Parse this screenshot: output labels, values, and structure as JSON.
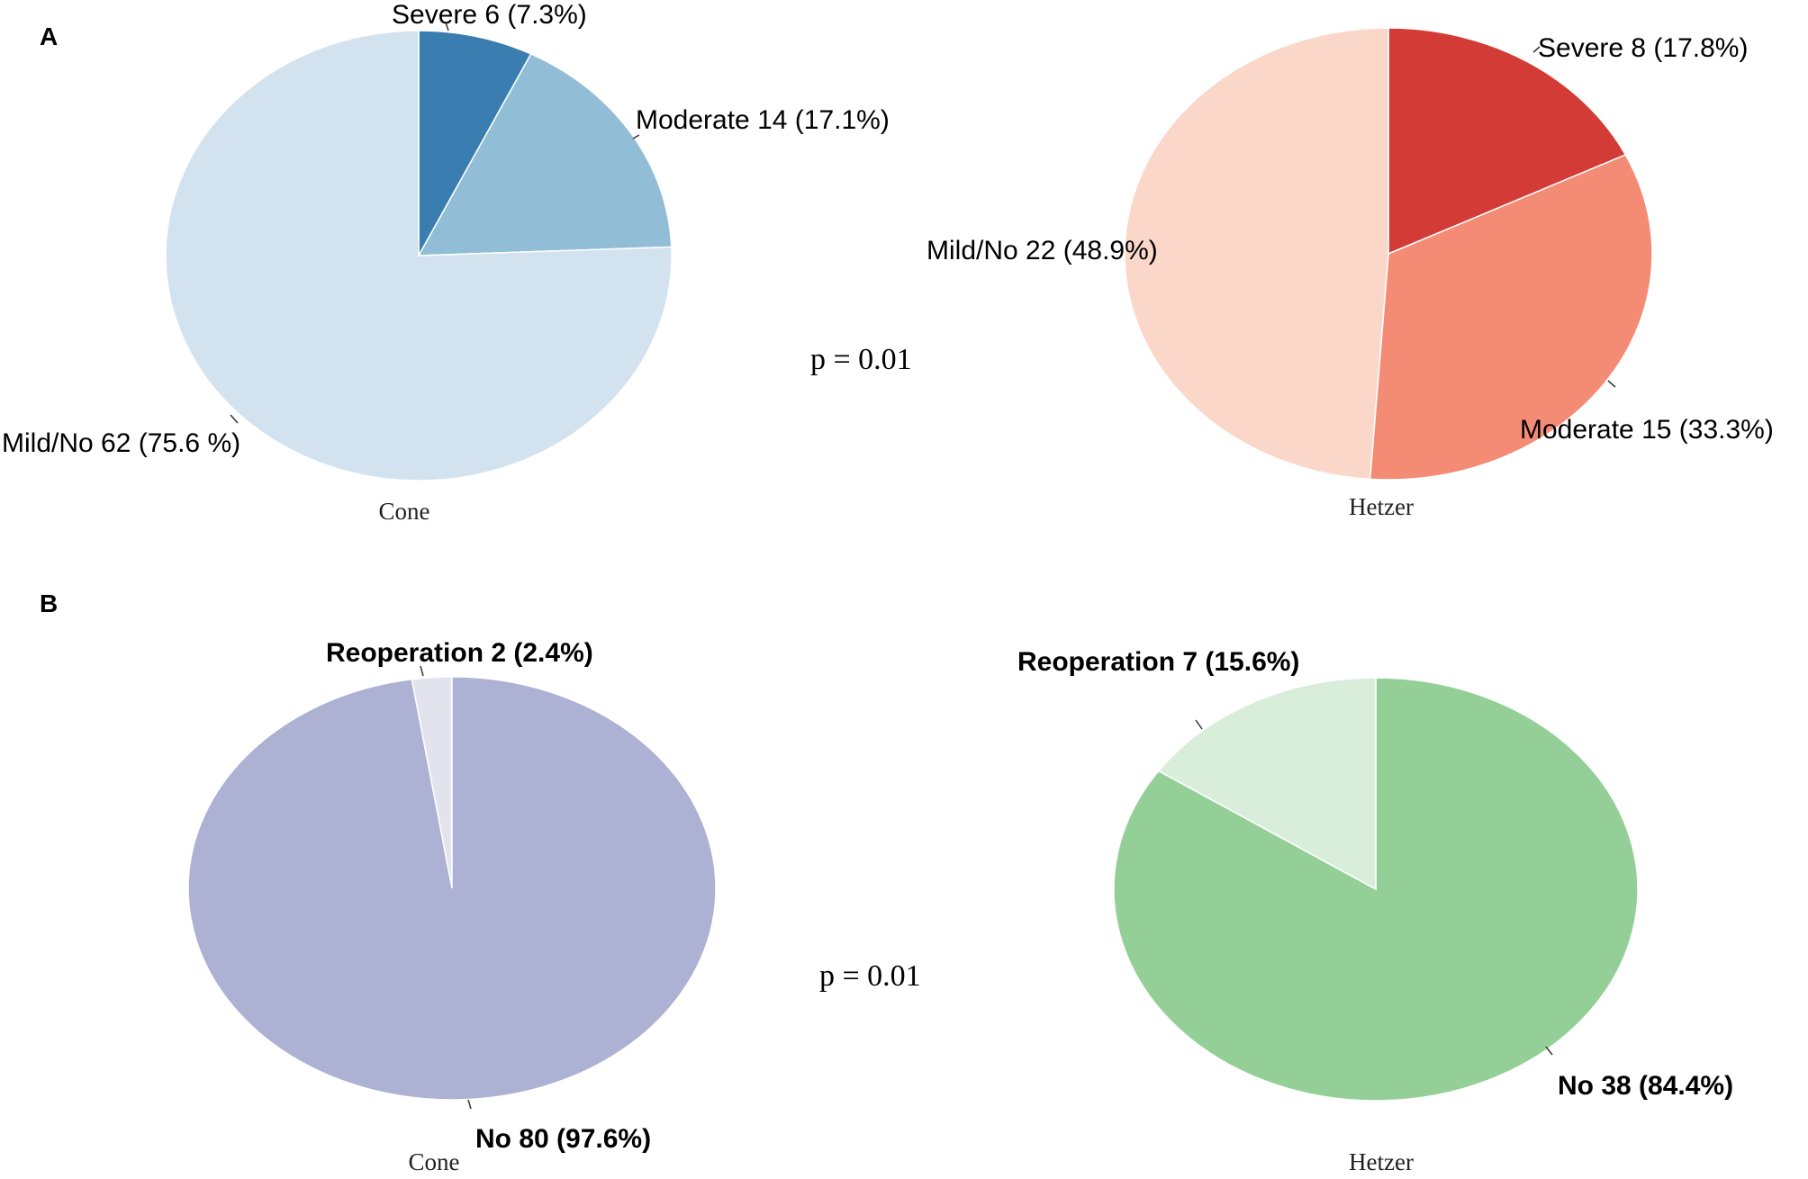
{
  "panels": [
    {
      "letter": "A",
      "p_value": "p = 0.01"
    },
    {
      "letter": "B",
      "p_value": "p = 0.01"
    }
  ],
  "chart_data": [
    {
      "type": "pie",
      "panel": "A",
      "group": "Cone",
      "slices": [
        {
          "label": "Severe 6 (7.3%)",
          "value": 6,
          "percent": 7.3,
          "color": "#3a7db1"
        },
        {
          "label": "Moderate 14 (17.1%)",
          "value": 14,
          "percent": 17.1,
          "color": "#91bed6"
        },
        {
          "label": "Mild/No 62 (75.6 %)",
          "value": 62,
          "percent": 75.6,
          "color": "#d2e2ef"
        }
      ]
    },
    {
      "type": "pie",
      "panel": "A",
      "group": "Hetzer",
      "slices": [
        {
          "label": "Severe 8 (17.8%)",
          "value": 8,
          "percent": 17.8,
          "color": "#d33b37"
        },
        {
          "label": "Moderate 15 (33.3%)",
          "value": 15,
          "percent": 33.3,
          "color": "#f48b75"
        },
        {
          "label": "Mild/No 22 (48.9%)",
          "value": 22,
          "percent": 48.9,
          "color": "#fbd7ca"
        }
      ]
    },
    {
      "type": "pie",
      "panel": "B",
      "group": "Cone",
      "slices": [
        {
          "label": "Reoperation 2 (2.4%)",
          "value": 2,
          "percent": 2.4,
          "color": "#e3e3ee"
        },
        {
          "label": "No 80 (97.6%)",
          "value": 80,
          "percent": 97.6,
          "color": "#adb1d3"
        }
      ]
    },
    {
      "type": "pie",
      "panel": "B",
      "group": "Hetzer",
      "slices": [
        {
          "label": "No 38 (84.4%)",
          "value": 38,
          "percent": 84.4,
          "color": "#95cf98"
        },
        {
          "label": "Reoperation 7 (15.6%)",
          "value": 7,
          "percent": 15.6,
          "color": "#d9eeda"
        }
      ]
    }
  ]
}
